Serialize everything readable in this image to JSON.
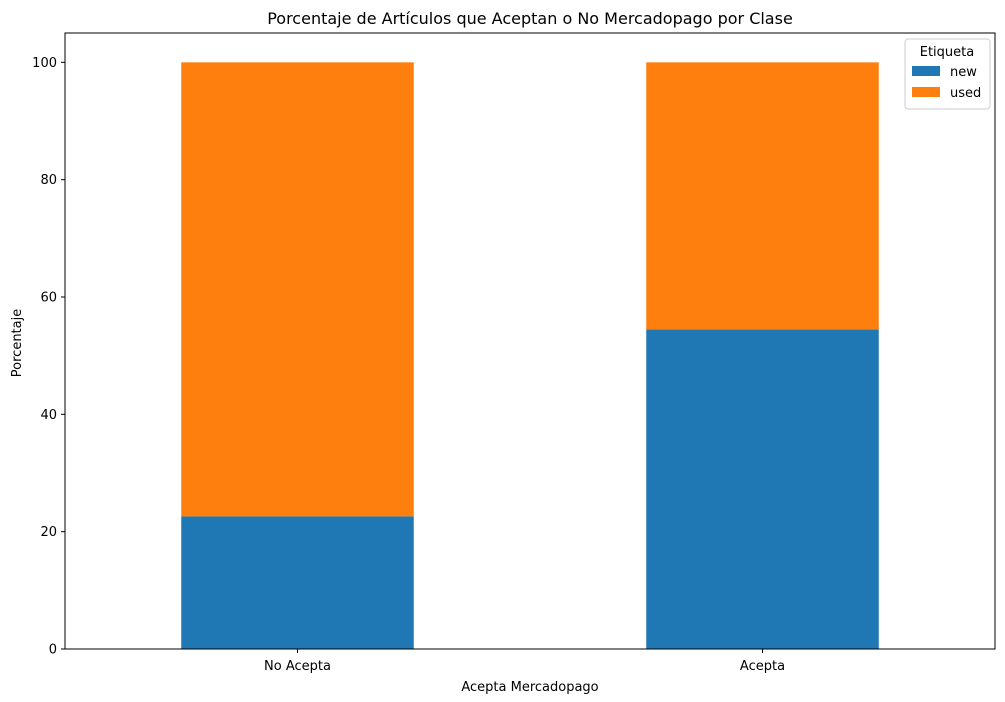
{
  "chart_data": {
    "type": "bar",
    "stacked": true,
    "title": "Porcentaje de Artículos que Aceptan o No Mercadopago por Clase",
    "xlabel": "Acepta Mercadopago",
    "ylabel": "Porcentaje",
    "categories": [
      "No Acepta",
      "Acepta"
    ],
    "series": [
      {
        "name": "new",
        "color": "#1f77b4",
        "values": [
          22.6,
          54.5
        ]
      },
      {
        "name": "used",
        "color": "#ff7f0e",
        "values": [
          77.4,
          45.5
        ]
      }
    ],
    "ylim": [
      0,
      105
    ],
    "yticks": [
      0,
      20,
      40,
      60,
      80,
      100
    ],
    "grid": false,
    "legend": {
      "title": "Etiqueta",
      "position": "top-right"
    }
  }
}
